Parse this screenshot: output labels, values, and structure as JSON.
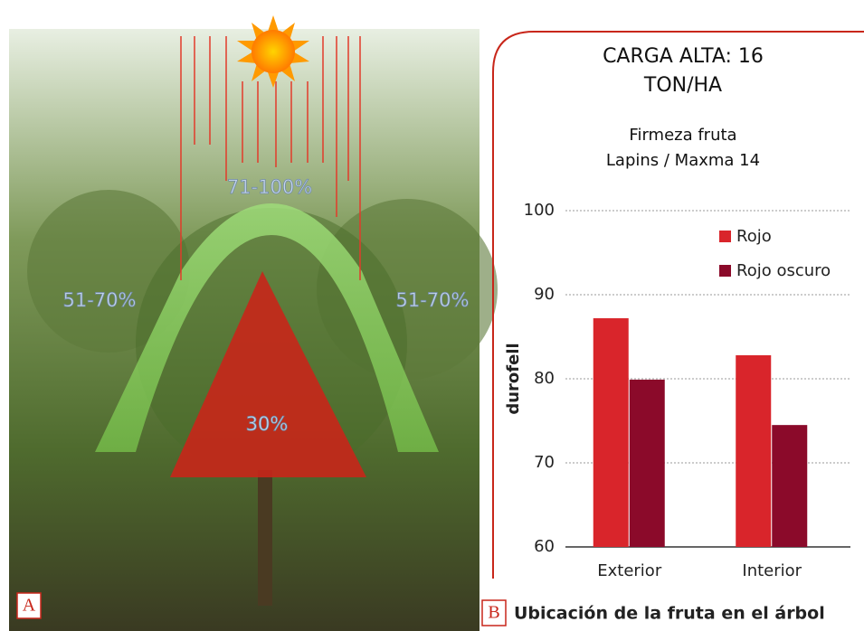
{
  "panel_a": {
    "letter": "A",
    "zones": [
      "71-100%",
      "51-70%",
      "51-70%",
      "30%"
    ]
  },
  "panel_b": {
    "letter": "B"
  },
  "chart_data": {
    "type": "bar",
    "title": [
      "CARGA ALTA: 16",
      "TON/HA"
    ],
    "subtitle": [
      "Firmeza fruta",
      "Lapins / Maxma 14"
    ],
    "x_label": "Ubicación de la fruta en el árbol",
    "y_label": "durofell",
    "categories": [
      "Exterior",
      "Interior"
    ],
    "series": [
      {
        "name": "Rojo",
        "color": "#d9252b",
        "values": [
          87.2,
          82.8
        ]
      },
      {
        "name": "Rojo oscuro",
        "color": "#8b0a2a",
        "values": [
          79.9,
          74.5
        ]
      }
    ],
    "ylim": [
      60,
      100
    ],
    "yticks": [
      60,
      70,
      80,
      90,
      100
    ],
    "grid": true,
    "legend": "upper right"
  }
}
